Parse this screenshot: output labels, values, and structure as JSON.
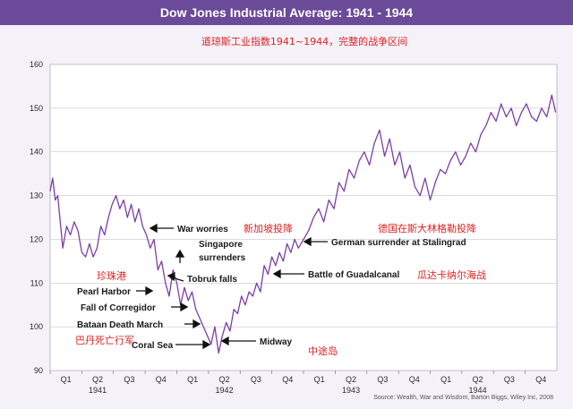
{
  "chart_data": {
    "type": "line",
    "title": "Dow Jones Industrial Average: 1941 - 1944",
    "subtitle_cn": "道琼斯工业指数1941~1944，完整的战争区间",
    "ylim": [
      90,
      160
    ],
    "yticks": [
      90,
      100,
      110,
      120,
      130,
      140,
      150,
      160
    ],
    "x_quarter_labels": [
      "Q1",
      "Q2",
      "Q3",
      "Q4",
      "Q1",
      "Q2",
      "Q3",
      "Q4",
      "Q1",
      "Q2",
      "Q3",
      "Q4",
      "Q1",
      "Q2",
      "Q3",
      "Q4"
    ],
    "x_year_labels": [
      "1941",
      "1942",
      "1943",
      "1944"
    ],
    "grid": true,
    "series": [
      {
        "color": "#7b3fa8",
        "x": [
          1941.0,
          1941.02,
          1941.04,
          1941.06,
          1941.08,
          1941.1,
          1941.13,
          1941.16,
          1941.19,
          1941.22,
          1941.25,
          1941.28,
          1941.31,
          1941.34,
          1941.37,
          1941.4,
          1941.43,
          1941.46,
          1941.49,
          1941.52,
          1941.55,
          1941.58,
          1941.61,
          1941.64,
          1941.67,
          1941.7,
          1941.73,
          1941.76,
          1941.79,
          1941.82,
          1941.85,
          1941.88,
          1941.91,
          1941.94,
          1941.97,
          1942.0,
          1942.03,
          1942.06,
          1942.09,
          1942.12,
          1942.15,
          1942.18,
          1942.21,
          1942.24,
          1942.27,
          1942.3,
          1942.33,
          1942.36,
          1942.39,
          1942.42,
          1942.45,
          1942.48,
          1942.51,
          1942.54,
          1942.57,
          1942.6,
          1942.63,
          1942.66,
          1942.69,
          1942.72,
          1942.75,
          1942.78,
          1942.81,
          1942.84,
          1942.87,
          1942.9,
          1942.93,
          1942.96,
          1943.0,
          1943.04,
          1943.08,
          1943.12,
          1943.16,
          1943.2,
          1943.24,
          1943.28,
          1943.32,
          1943.36,
          1943.4,
          1943.44,
          1943.48,
          1943.52,
          1943.56,
          1943.6,
          1943.64,
          1943.68,
          1943.72,
          1943.76,
          1943.8,
          1943.84,
          1943.88,
          1943.92,
          1943.96,
          1944.0,
          1944.04,
          1944.08,
          1944.12,
          1944.16,
          1944.2,
          1944.24,
          1944.28,
          1944.32,
          1944.36,
          1944.4,
          1944.44,
          1944.48,
          1944.52,
          1944.56,
          1944.6,
          1944.64,
          1944.68,
          1944.72,
          1944.76,
          1944.8,
          1944.84,
          1944.88,
          1944.92,
          1944.96,
          1944.99
        ],
        "values": [
          131,
          134,
          129,
          130,
          124,
          118,
          123,
          121,
          124,
          122,
          117,
          116,
          119,
          116,
          118,
          123,
          121,
          125,
          128,
          130,
          127,
          129,
          125,
          128,
          124,
          127,
          123,
          121,
          118,
          120,
          113,
          115,
          110,
          107,
          113,
          110,
          105,
          109,
          106,
          108,
          104,
          102,
          100,
          98,
          96,
          100,
          94,
          98,
          101,
          99,
          104,
          103,
          107,
          105,
          108,
          107,
          110,
          108,
          114,
          112,
          116,
          114,
          117,
          115,
          119,
          117,
          120,
          118,
          120,
          122,
          125,
          127,
          124,
          129,
          127,
          133,
          131,
          136,
          134,
          138,
          140,
          137,
          142,
          145,
          139,
          143,
          137,
          140,
          134,
          137,
          132,
          130,
          134,
          129,
          133,
          136,
          135,
          138,
          140,
          137,
          139,
          142,
          140,
          144,
          146,
          149,
          147,
          151,
          148,
          150,
          146,
          149,
          151,
          148,
          147,
          150,
          148,
          153,
          149
        ]
      }
    ],
    "annotations": [
      {
        "label": "War worries",
        "x": 1941.76,
        "y": 122
      },
      {
        "label": "Singapore",
        "x": 1942.12,
        "y": 116
      },
      {
        "label": "surrenders",
        "x": 1942.12,
        "y": 116
      },
      {
        "label": "Tobruk falls",
        "x": 1942.42,
        "y": 112
      },
      {
        "label": "Pearl Harbor",
        "x": 1941.93,
        "y": 107
      },
      {
        "label": "Fall of Corregidor",
        "x": 1942.33,
        "y": 104
      },
      {
        "label": "Bataan Death March",
        "x": 1942.24,
        "y": 100
      },
      {
        "label": "Coral Sea",
        "x": 1942.34,
        "y": 96
      },
      {
        "label": "Midway",
        "x": 1942.45,
        "y": 97
      },
      {
        "label": "Battle of Guadalcanal",
        "x": 1942.55,
        "y": 111
      },
      {
        "label": "German surrender at Stalingrad",
        "x": 1943.05,
        "y": 120
      }
    ],
    "red_labels": [
      "新加坡投降",
      "德国在斯大林格勒投降",
      "珍珠港",
      "瓜达卡纳尔海战",
      "巴丹死亡行军",
      "中途岛"
    ],
    "source": "Source: Wealth, War and Wisdom, Barton Biggs, Wiley Inc, 2008"
  }
}
